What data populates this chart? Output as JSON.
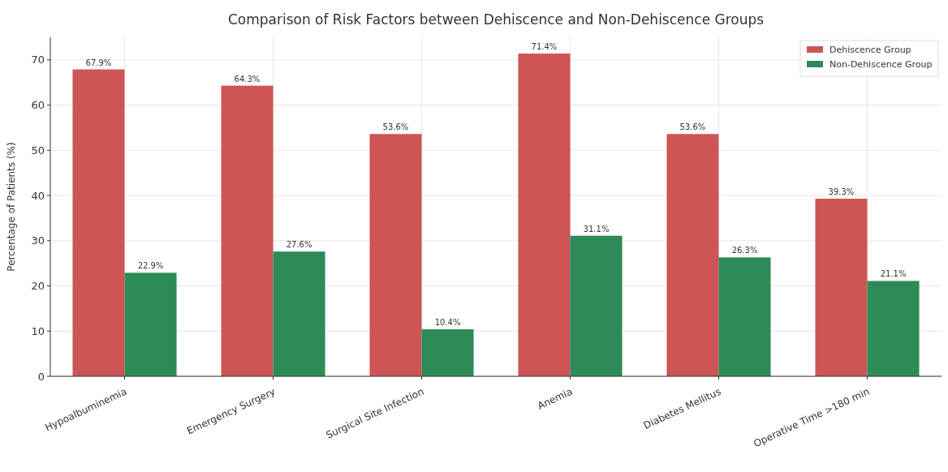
{
  "chart_data": {
    "type": "bar",
    "title": "Comparison of Risk Factors between Dehiscence and Non-Dehiscence Groups",
    "ylabel": "Percentage of Patients (%)",
    "categories": [
      "Hypoalbuminemia",
      "Emergency Surgery",
      "Surgical Site Infection",
      "Anemia",
      "Diabetes Mellitus",
      "Operative Time >180 min"
    ],
    "series": [
      {
        "name": "Dehiscence Group",
        "color": "#cd5555",
        "values": [
          67.9,
          64.3,
          53.6,
          71.4,
          53.6,
          39.3
        ],
        "value_labels": [
          "67.9%",
          "64.3%",
          "53.6%",
          "71.4%",
          "53.6%",
          "39.3%"
        ]
      },
      {
        "name": "Non-Dehiscence Group",
        "color": "#2e8b57",
        "values": [
          22.9,
          27.6,
          10.4,
          31.1,
          26.3,
          21.1
        ],
        "value_labels": [
          "22.9%",
          "27.6%",
          "10.4%",
          "31.1%",
          "26.3%",
          "21.1%"
        ]
      }
    ],
    "ylim": [
      0,
      75
    ],
    "yticks": [
      0,
      10,
      20,
      30,
      40,
      50,
      60,
      70
    ],
    "grid": true,
    "legend": "top right"
  }
}
